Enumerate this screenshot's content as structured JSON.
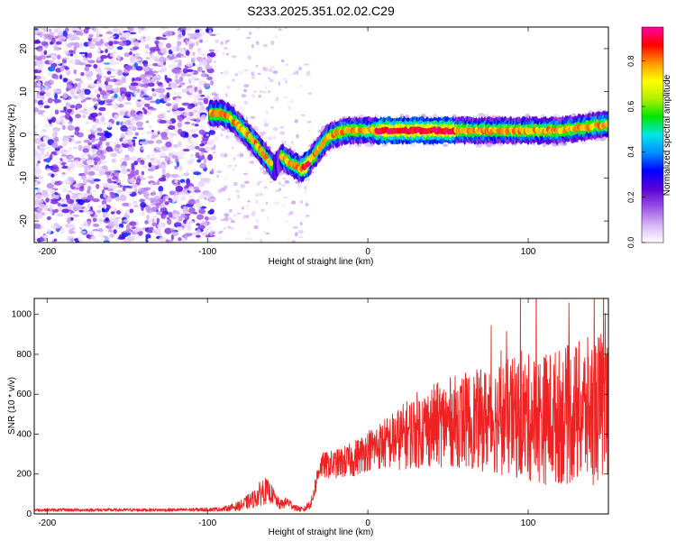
{
  "title": "S233.2025.351.02.02.C29",
  "chart_data": [
    {
      "type": "heatmap",
      "xlabel": "Height of straight line (km)",
      "ylabel": "Frequency (Hz)",
      "xlim": [
        -208,
        150
      ],
      "ylim": [
        -25,
        25
      ],
      "xticks": [
        -200,
        -100,
        0,
        100
      ],
      "yticks": [
        -20,
        -10,
        0,
        10,
        20
      ],
      "colorbar": {
        "label": "Normalized spectral amplitude",
        "range": [
          0.0,
          0.95
        ],
        "ticks": [
          0.0,
          0.2,
          0.4,
          0.6,
          0.8
        ],
        "colors": [
          "#ffffff",
          "#d6b4f4",
          "#9a4fe6",
          "#5a00d8",
          "#0000ff",
          "#0090ff",
          "#00e6e6",
          "#00e600",
          "#b4f000",
          "#ffff00",
          "#ff9600",
          "#ff0000",
          "#ff00a0"
        ]
      },
      "ridge": {
        "x": [
          -98,
          -92,
          -86,
          -80,
          -75,
          -70,
          -66,
          -62,
          -58,
          -54,
          -50,
          -46,
          -42,
          -38,
          -34,
          -30,
          -26,
          -22,
          -18,
          -14,
          -10,
          -6,
          -2,
          2,
          10,
          20,
          30,
          40,
          50,
          60,
          70,
          80,
          90,
          100,
          110,
          120,
          130,
          140,
          150
        ],
        "y": [
          5,
          5,
          4,
          2,
          0,
          -2,
          -4,
          -6,
          -8,
          -5,
          -6,
          -7,
          -8,
          -7,
          -5,
          -3,
          -1,
          0,
          0.5,
          1,
          1,
          1,
          1,
          1,
          1,
          1,
          1,
          1,
          1,
          1,
          1,
          1,
          1,
          1,
          1,
          1,
          1.5,
          2,
          2.5
        ]
      }
    },
    {
      "type": "line",
      "xlabel": "Height of straight line (km)",
      "ylabel": "SNR (10 * v/v)",
      "xlim": [
        -208,
        150
      ],
      "ylim": [
        0,
        1080
      ],
      "xticks": [
        -200,
        -100,
        0,
        100
      ],
      "yticks": [
        0,
        200,
        400,
        600,
        800,
        1000
      ],
      "color": "#ee2222",
      "series": [
        {
          "name": "SNR",
          "envelope_x": [
            -208,
            -120,
            -100,
            -90,
            -80,
            -70,
            -65,
            -60,
            -55,
            -50,
            -45,
            -40,
            -35,
            -30,
            -20,
            -10,
            0,
            10,
            20,
            30,
            40,
            50,
            60,
            70,
            80,
            90,
            100,
            110,
            120,
            130,
            140,
            150
          ],
          "mean": [
            20,
            20,
            22,
            25,
            40,
            80,
            120,
            100,
            45,
            60,
            30,
            20,
            60,
            240,
            250,
            270,
            320,
            350,
            380,
            420,
            440,
            460,
            470,
            470,
            480,
            480,
            480,
            480,
            490,
            500,
            520,
            550
          ],
          "spread": [
            10,
            10,
            12,
            15,
            30,
            60,
            90,
            60,
            30,
            35,
            20,
            15,
            40,
            80,
            90,
            110,
            130,
            160,
            200,
            240,
            260,
            280,
            300,
            320,
            350,
            380,
            400,
            420,
            430,
            450,
            470,
            480
          ]
        }
      ]
    }
  ]
}
